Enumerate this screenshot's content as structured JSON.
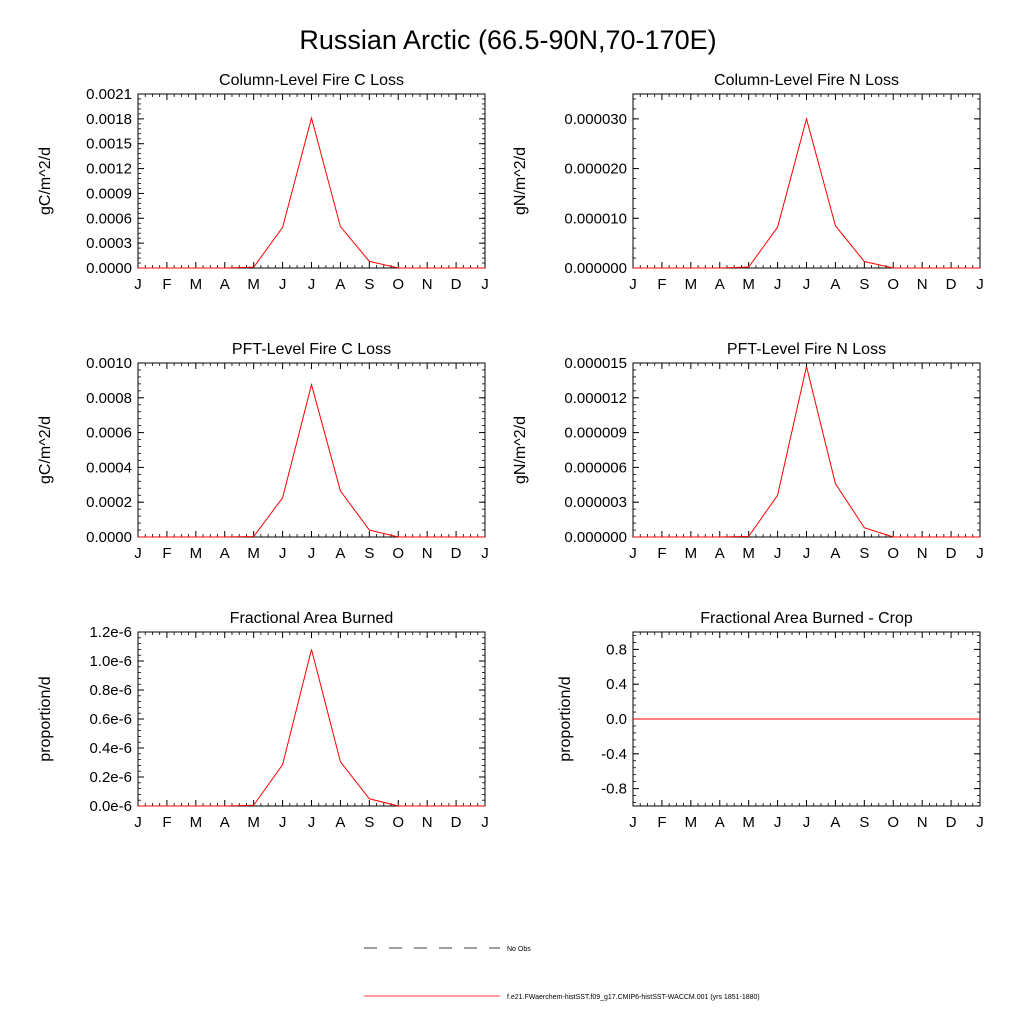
{
  "figure": {
    "title": "Russian Arctic (66.5-90N,70-170E)"
  },
  "legend": {
    "entries": [
      {
        "label": "No Obs",
        "style": "dashed",
        "color": "#000000"
      },
      {
        "label": "f.e21.FWaerchem-histSST.f09_g17.CMIP6-histSST-WACCM.001 (yrs 1851-1880)",
        "style": "solid",
        "color": "#ff0000"
      }
    ]
  },
  "chart_data": [
    {
      "type": "line",
      "title": "Column-Level Fire C Loss",
      "xlabel": "",
      "ylabel": "gC/m^2/d",
      "categories": [
        "J",
        "F",
        "M",
        "A",
        "M",
        "J",
        "J",
        "A",
        "S",
        "O",
        "N",
        "D",
        "J"
      ],
      "ylim": [
        0,
        0.0021
      ],
      "yticks": [
        "0.0000",
        "0.0003",
        "0.0006",
        "0.0009",
        "0.0012",
        "0.0015",
        "0.0018",
        "0.0021"
      ],
      "ytick_values": [
        0,
        0.0003,
        0.0006,
        0.0009,
        0.0012,
        0.0015,
        0.0018,
        0.0021
      ],
      "series": [
        {
          "color": "#ff0000",
          "values": [
            0,
            0,
            0,
            0,
            1e-05,
            0.00049,
            0.00181,
            0.0005,
            8e-05,
            0,
            0,
            0,
            0
          ]
        }
      ]
    },
    {
      "type": "line",
      "title": "Column-Level Fire N Loss",
      "xlabel": "",
      "ylabel": "gN/m^2/d",
      "categories": [
        "J",
        "F",
        "M",
        "A",
        "M",
        "J",
        "J",
        "A",
        "S",
        "O",
        "N",
        "D",
        "J"
      ],
      "ylim": [
        0,
        3.5e-05
      ],
      "yticks": [
        "0.000000",
        "0.000010",
        "0.000020",
        "0.000030"
      ],
      "ytick_values": [
        0,
        1e-05,
        2e-05,
        3e-05
      ],
      "series": [
        {
          "color": "#ff0000",
          "values": [
            0,
            0,
            0,
            0,
            2e-07,
            8.2e-06,
            3e-05,
            8.5e-06,
            1.3e-06,
            0,
            0,
            0,
            0
          ]
        }
      ]
    },
    {
      "type": "line",
      "title": "PFT-Level Fire C Loss",
      "xlabel": "",
      "ylabel": "gC/m^2/d",
      "categories": [
        "J",
        "F",
        "M",
        "A",
        "M",
        "J",
        "J",
        "A",
        "S",
        "O",
        "N",
        "D",
        "J"
      ],
      "ylim": [
        0,
        0.001
      ],
      "yticks": [
        "0.0000",
        "0.0002",
        "0.0004",
        "0.0006",
        "0.0008",
        "0.0010"
      ],
      "ytick_values": [
        0,
        0.0002,
        0.0004,
        0.0006,
        0.0008,
        0.001
      ],
      "series": [
        {
          "color": "#ff0000",
          "values": [
            0,
            0,
            0,
            0,
            3e-06,
            0.000225,
            0.000875,
            0.000265,
            4e-05,
            0,
            0,
            0,
            0
          ]
        }
      ]
    },
    {
      "type": "line",
      "title": "PFT-Level Fire N Loss",
      "xlabel": "",
      "ylabel": "gN/m^2/d",
      "categories": [
        "J",
        "F",
        "M",
        "A",
        "M",
        "J",
        "J",
        "A",
        "S",
        "O",
        "N",
        "D",
        "J"
      ],
      "ylim": [
        0,
        1.5e-05
      ],
      "yticks": [
        "0.000000",
        "0.000003",
        "0.000006",
        "0.000009",
        "0.000012",
        "0.000015"
      ],
      "ytick_values": [
        0,
        3e-06,
        6e-06,
        9e-06,
        1.2e-05,
        1.5e-05
      ],
      "series": [
        {
          "color": "#ff0000",
          "values": [
            0,
            0,
            0,
            0,
            5e-08,
            3.6e-06,
            1.47e-05,
            4.6e-06,
            8e-07,
            0,
            0,
            0,
            0
          ]
        }
      ]
    },
    {
      "type": "line",
      "title": "Fractional Area Burned",
      "xlabel": "",
      "ylabel": "proportion/d",
      "categories": [
        "J",
        "F",
        "M",
        "A",
        "M",
        "J",
        "J",
        "A",
        "S",
        "O",
        "N",
        "D",
        "J"
      ],
      "ylim": [
        0,
        1.2e-06
      ],
      "yticks": [
        "0.0e-6",
        "0.2e-6",
        "0.4e-6",
        "0.6e-6",
        "0.8e-6",
        "1.0e-6",
        "1.2e-6"
      ],
      "ytick_values": [
        0,
        2e-07,
        4e-07,
        6e-07,
        8e-07,
        1e-06,
        1.2e-06
      ],
      "series": [
        {
          "color": "#ff0000",
          "values": [
            0,
            0,
            0,
            0,
            5e-09,
            2.85e-07,
            1.08e-06,
            3.05e-07,
            5e-08,
            0,
            0,
            0,
            0
          ]
        }
      ]
    },
    {
      "type": "line",
      "title": "Fractional Area Burned - Crop",
      "xlabel": "",
      "ylabel": "proportion/d",
      "categories": [
        "J",
        "F",
        "M",
        "A",
        "M",
        "J",
        "J",
        "A",
        "S",
        "O",
        "N",
        "D",
        "J"
      ],
      "ylim": [
        -1,
        1
      ],
      "yticks": [
        "-0.8",
        "-0.4",
        "0.0",
        "0.4",
        "0.8"
      ],
      "ytick_values": [
        -0.8,
        -0.4,
        0,
        0.4,
        0.8
      ],
      "series": [
        {
          "color": "#ff0000",
          "values": [
            0,
            0,
            0,
            0,
            0,
            0,
            0,
            0,
            0,
            0,
            0,
            0,
            0
          ]
        }
      ]
    }
  ]
}
